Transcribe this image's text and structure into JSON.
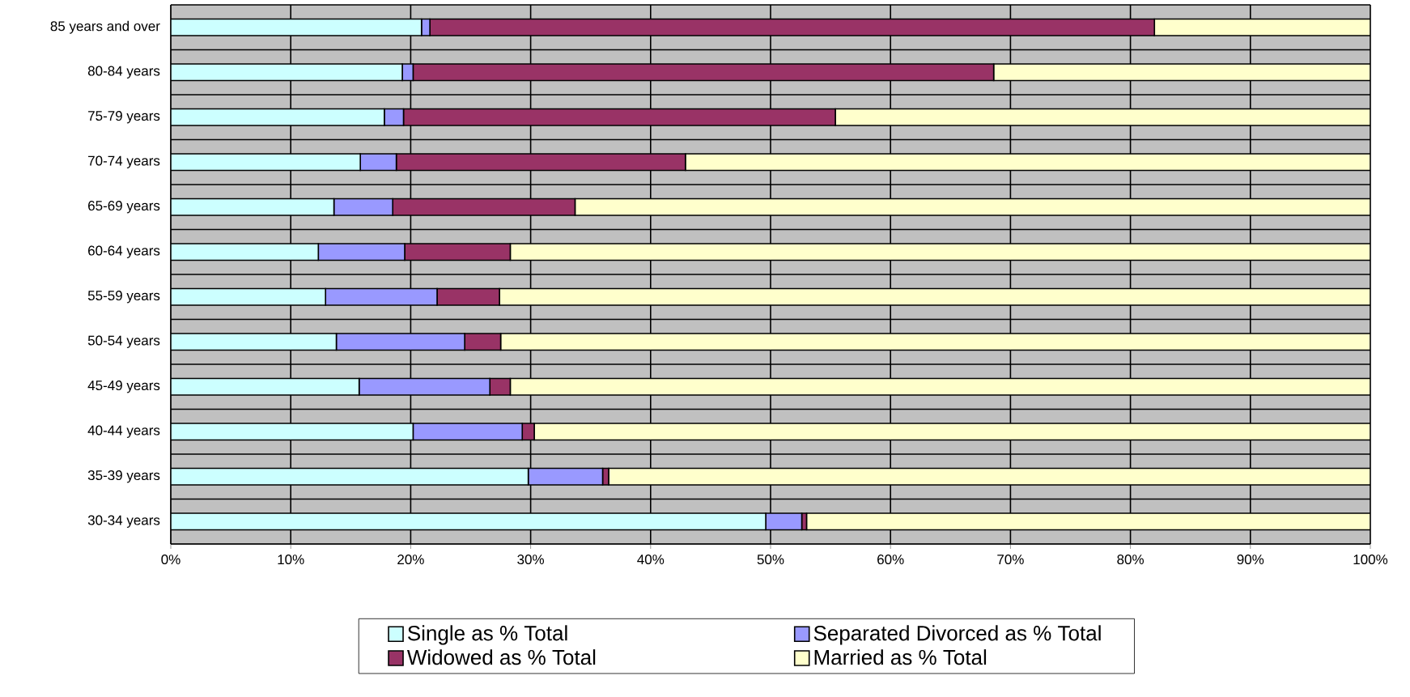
{
  "chart_data": {
    "type": "bar",
    "orientation": "horizontal",
    "stacked": true,
    "categories": [
      "85 years and over",
      "80-84 years",
      "75-79 years",
      "70-74 years",
      "65-69  years",
      "60-64 years",
      "55-59 years",
      "50-54 years",
      "45-49  years",
      "40-44 years",
      "35-39 years",
      "30-34 years"
    ],
    "series": [
      {
        "name": "Single as % Total",
        "color": "#ccffff",
        "values": [
          20.9,
          19.3,
          17.8,
          15.8,
          13.6,
          12.3,
          12.9,
          13.8,
          15.7,
          20.2,
          29.8,
          49.6
        ]
      },
      {
        "name": "Separated Divorced as % Total",
        "color": "#9999ff",
        "values": [
          0.7,
          0.9,
          1.6,
          3.0,
          4.9,
          7.2,
          9.3,
          10.7,
          10.9,
          9.1,
          6.2,
          3.0
        ]
      },
      {
        "name": "Widowed as % Total",
        "color": "#993366",
        "values": [
          60.4,
          48.4,
          36.0,
          24.1,
          15.2,
          8.8,
          5.2,
          3.0,
          1.7,
          1.0,
          0.5,
          0.4
        ]
      },
      {
        "name": "Married as % Total",
        "color": "#ffffcc",
        "values": [
          18.0,
          31.4,
          44.6,
          57.1,
          66.3,
          71.7,
          72.6,
          72.5,
          71.7,
          69.7,
          63.5,
          47.0
        ]
      }
    ],
    "xlim": [
      0,
      100
    ],
    "xticks": [
      {
        "value": 0,
        "label": "0%"
      },
      {
        "value": 10,
        "label": "10%"
      },
      {
        "value": 20,
        "label": "20%"
      },
      {
        "value": 30,
        "label": "30%"
      },
      {
        "value": 40,
        "label": "40%"
      },
      {
        "value": 50,
        "label": "50%"
      },
      {
        "value": 60,
        "label": "60%"
      },
      {
        "value": 70,
        "label": "70%"
      },
      {
        "value": 80,
        "label": "80%"
      },
      {
        "value": 90,
        "label": "90%"
      },
      {
        "value": 100,
        "label": "100%"
      }
    ],
    "grid": true,
    "legend": "bottom"
  }
}
